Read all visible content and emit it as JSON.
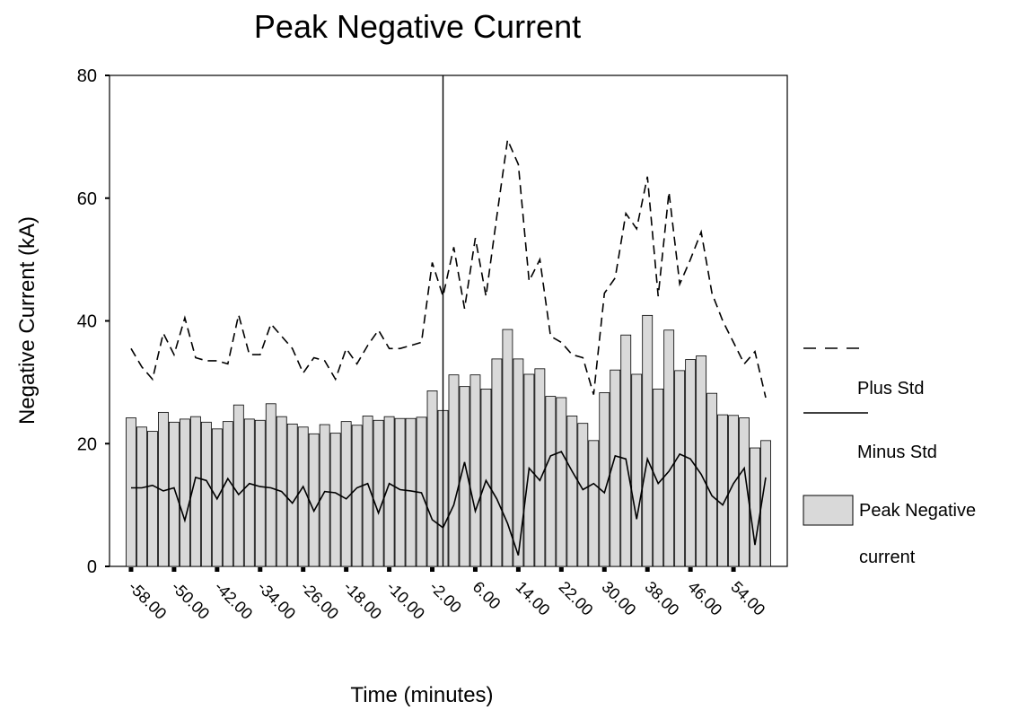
{
  "chart_data": {
    "type": "bar",
    "title": "Peak Negative Current",
    "xlabel": "Time (minutes)",
    "ylabel": "Negative Current (kA)",
    "x": [
      -58,
      -56,
      -54,
      -52,
      -50,
      -48,
      -46,
      -44,
      -42,
      -40,
      -38,
      -36,
      -34,
      -32,
      -30,
      -28,
      -26,
      -24,
      -22,
      -20,
      -18,
      -16,
      -14,
      -12,
      -10,
      -8,
      -6,
      -4,
      -2,
      0,
      2,
      4,
      6,
      8,
      10,
      12,
      14,
      16,
      18,
      20,
      22,
      24,
      26,
      28,
      30,
      32,
      34,
      36,
      38,
      40,
      42,
      44,
      46,
      48,
      50,
      52,
      54,
      56,
      58,
      60
    ],
    "series": [
      {
        "name": "Plus Std",
        "type": "line",
        "style": "dashed",
        "color": "#000000",
        "values": [
          35.5,
          32.5,
          30.5,
          38,
          34.5,
          40.5,
          34,
          33.5,
          33.5,
          33,
          41,
          34.5,
          34.5,
          39.5,
          37.5,
          35.5,
          31.5,
          34,
          33.5,
          30.5,
          35.5,
          33,
          36,
          38.5,
          35.5,
          35.5,
          36,
          36.5,
          49.5,
          44,
          52,
          42,
          53.5,
          44,
          57,
          69.5,
          65.5,
          46.5,
          50,
          37.5,
          36.5,
          34.5,
          34,
          28,
          44.5,
          47,
          57.5,
          55,
          63.5,
          44,
          61,
          46,
          50,
          54.5,
          44.5,
          40,
          36.5,
          33,
          35,
          27.5
        ]
      },
      {
        "name": "Minus Std",
        "type": "line",
        "style": "solid",
        "color": "#000000",
        "values": [
          12.8,
          12.8,
          13.2,
          12.3,
          12.8,
          7.5,
          14.5,
          14,
          11,
          14.3,
          11.7,
          13.5,
          13,
          12.8,
          12.2,
          10.3,
          13,
          9,
          12.2,
          12,
          11,
          12.8,
          13.5,
          8.7,
          13.5,
          12.5,
          12.3,
          12,
          7.6,
          6.3,
          10,
          17,
          9,
          14,
          11,
          7,
          1.8,
          16,
          14,
          18,
          18.7,
          15.5,
          12.5,
          13.5,
          12,
          18,
          17.5,
          7.7,
          17.5,
          13.5,
          15.5,
          18.3,
          17.5,
          15,
          11.5,
          10,
          13.5,
          16,
          3.5,
          14.5
        ]
      },
      {
        "name": "Peak Negative current",
        "type": "bar",
        "color": "#d9d9d9",
        "values": [
          24.2,
          22.7,
          22,
          25.1,
          23.5,
          24,
          24.4,
          23.5,
          22.4,
          23.6,
          26.3,
          24,
          23.8,
          26.5,
          24.4,
          23.2,
          22.7,
          21.6,
          23.1,
          21.7,
          23.6,
          23,
          24.5,
          23.8,
          24.4,
          24.1,
          24.1,
          24.3,
          28.6,
          25.4,
          31.2,
          29.3,
          31.2,
          28.9,
          33.8,
          38.6,
          33.8,
          31.3,
          32.2,
          27.7,
          27.5,
          24.5,
          23.3,
          20.5,
          28.3,
          32,
          37.7,
          31.3,
          40.9,
          28.9,
          38.5,
          31.9,
          33.7,
          34.3,
          28.2,
          24.7,
          24.6,
          24.2,
          19.3,
          20.5
        ]
      }
    ],
    "xlim": [
      -62,
      64
    ],
    "xticks": [
      {
        "value": -58,
        "label": "-58.00"
      },
      {
        "value": -50,
        "label": "-50.00"
      },
      {
        "value": -42,
        "label": "-42.00"
      },
      {
        "value": -34,
        "label": "-34.00"
      },
      {
        "value": -26,
        "label": "-26.00"
      },
      {
        "value": -18,
        "label": "-18.00"
      },
      {
        "value": -10,
        "label": "-10.00"
      },
      {
        "value": -2,
        "label": "-2.00"
      },
      {
        "value": 6,
        "label": "6.00"
      },
      {
        "value": 14,
        "label": "14.00"
      },
      {
        "value": 22,
        "label": "22.00"
      },
      {
        "value": 30,
        "label": "30.00"
      },
      {
        "value": 38,
        "label": "38.00"
      },
      {
        "value": 46,
        "label": "46.00"
      },
      {
        "value": 54,
        "label": "54.00"
      }
    ],
    "ylim": [
      0,
      80
    ],
    "yticks": [
      0,
      20,
      40,
      60,
      80
    ],
    "vline_x": 0,
    "grid": false,
    "legend": "right"
  }
}
